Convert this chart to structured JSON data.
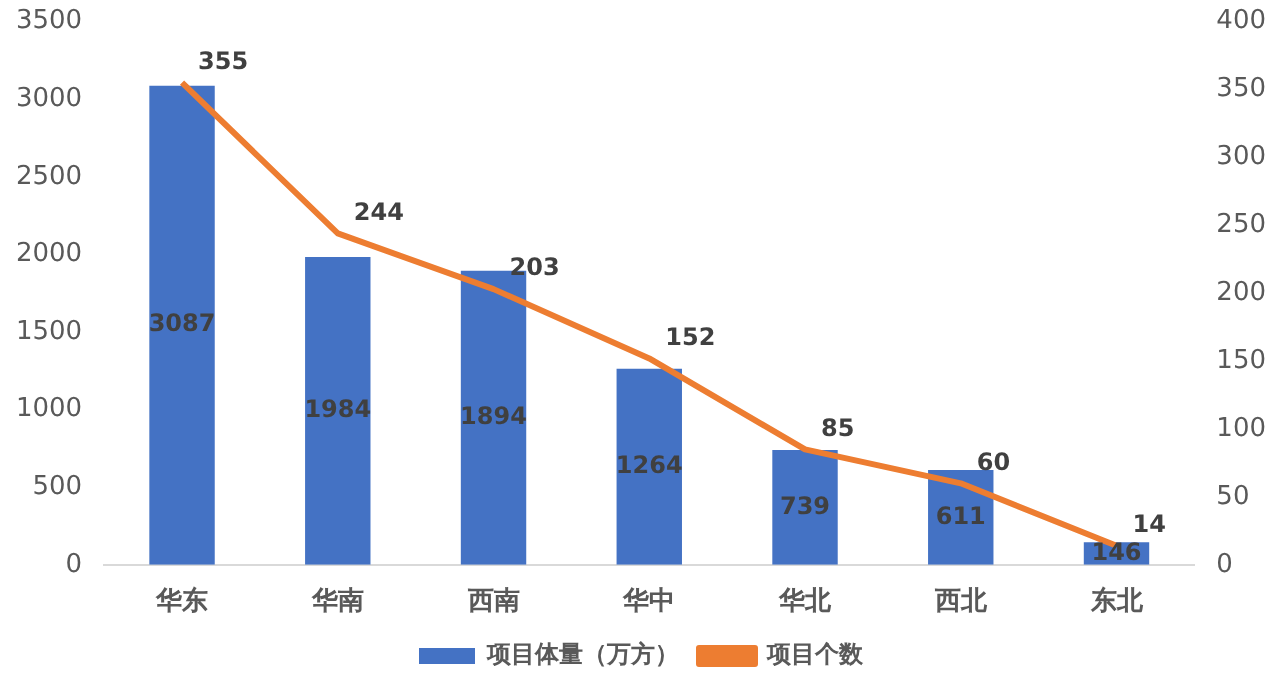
{
  "chart_data": {
    "type": "bar",
    "categories": [
      "华东",
      "华南",
      "西南",
      "华中",
      "华北",
      "西北",
      "东北"
    ],
    "series": [
      {
        "name": "项目体量（万方）",
        "color": "#4472c4",
        "values": [
          3087,
          1984,
          1894,
          1264,
          739,
          611,
          146
        ]
      },
      {
        "name": "项目个数",
        "type": "line",
        "axis": "y2",
        "color": "#ed7d31",
        "values": [
          355,
          244,
          203,
          152,
          85,
          60,
          14
        ]
      }
    ],
    "ylim": [
      0,
      3500
    ],
    "yticks": [
      0,
      500,
      1000,
      1500,
      2000,
      2500,
      3000,
      3500
    ],
    "y2lim": [
      0,
      400
    ],
    "y2ticks": [
      0,
      50,
      100,
      150,
      200,
      250,
      300,
      350,
      400
    ],
    "grid": false,
    "legend": "bottom",
    "data_labels": true,
    "marker": "none"
  }
}
